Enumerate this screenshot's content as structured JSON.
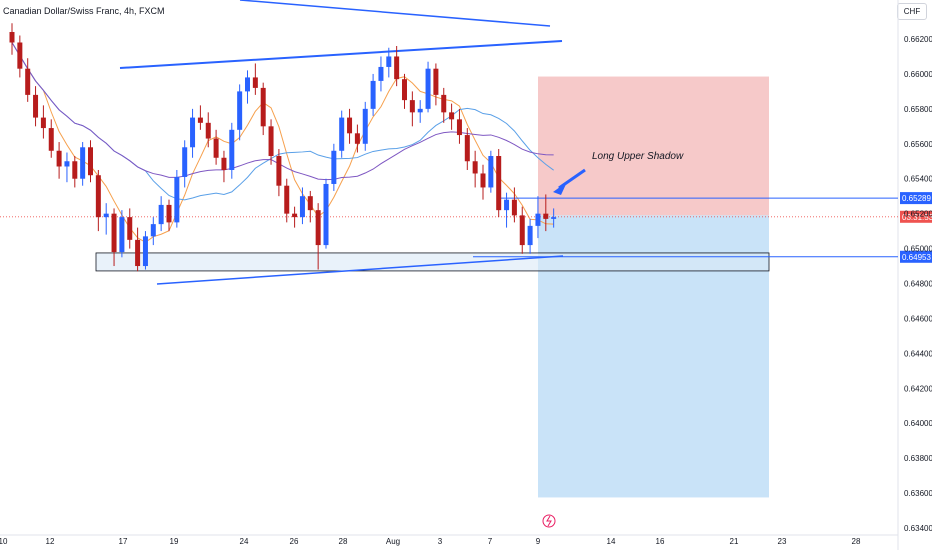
{
  "symbol_title": "Canadian Dollar/Swiss Franc, 4h, FXCM",
  "currency": "CHF",
  "chart_data": {
    "type": "candlestick",
    "yticks": [
      "0.66200",
      "0.66000",
      "0.65800",
      "0.65600",
      "0.65400",
      "0.65200",
      "0.65000",
      "0.64800",
      "0.64600",
      "0.64400",
      "0.64200",
      "0.64000",
      "0.63800",
      "0.63600",
      "0.63400"
    ],
    "xticks": [
      "10",
      "12",
      "17",
      "19",
      "24",
      "26",
      "28",
      "Aug",
      "3",
      "7",
      "9",
      "14",
      "16",
      "21",
      "23",
      "28"
    ],
    "ylim": [
      0.6333,
      0.6627
    ],
    "price_tags": [
      {
        "label": "0.65289",
        "value": 0.65289,
        "color": "#2962ff"
      },
      {
        "label": "03:31:53",
        "value": 0.65182,
        "color": "#ef5350"
      },
      {
        "label": "0.64953",
        "value": 0.64953,
        "color": "#2962ff"
      }
    ],
    "annotation": "Long Upper Shadow",
    "trade": {
      "entry": 0.6519,
      "stop": 0.65985,
      "target": 0.63575
    },
    "support_zone": [
      0.64872,
      0.64975
    ],
    "candles": [
      [
        0.6624,
        0.6629,
        0.6611,
        0.6618
      ],
      [
        0.6618,
        0.6622,
        0.6598,
        0.6603
      ],
      [
        0.6603,
        0.6609,
        0.6584,
        0.6588
      ],
      [
        0.6588,
        0.6593,
        0.657,
        0.6575
      ],
      [
        0.6575,
        0.6582,
        0.6563,
        0.6569
      ],
      [
        0.6569,
        0.6574,
        0.6552,
        0.6556
      ],
      [
        0.6556,
        0.6561,
        0.654,
        0.6547
      ],
      [
        0.6547,
        0.6555,
        0.6538,
        0.655
      ],
      [
        0.655,
        0.6553,
        0.6535,
        0.654
      ],
      [
        0.654,
        0.6561,
        0.6536,
        0.6558
      ],
      [
        0.6558,
        0.6562,
        0.6538,
        0.6542
      ],
      [
        0.6542,
        0.6545,
        0.651,
        0.6518
      ],
      [
        0.6518,
        0.6526,
        0.6508,
        0.652
      ],
      [
        0.652,
        0.6523,
        0.649,
        0.6498
      ],
      [
        0.6498,
        0.6522,
        0.6495,
        0.6518
      ],
      [
        0.6518,
        0.6523,
        0.65,
        0.6505
      ],
      [
        0.6505,
        0.6512,
        0.6487,
        0.649
      ],
      [
        0.649,
        0.651,
        0.6488,
        0.6507
      ],
      [
        0.6507,
        0.6518,
        0.6502,
        0.6514
      ],
      [
        0.6514,
        0.653,
        0.651,
        0.6525
      ],
      [
        0.6525,
        0.6528,
        0.651,
        0.6515
      ],
      [
        0.6515,
        0.6545,
        0.6512,
        0.6541
      ],
      [
        0.6541,
        0.6562,
        0.6535,
        0.6558
      ],
      [
        0.6558,
        0.658,
        0.6552,
        0.6575
      ],
      [
        0.6575,
        0.6582,
        0.6568,
        0.6572
      ],
      [
        0.6572,
        0.6578,
        0.6558,
        0.6563
      ],
      [
        0.6563,
        0.6568,
        0.6548,
        0.6552
      ],
      [
        0.6552,
        0.6556,
        0.6538,
        0.6545
      ],
      [
        0.6545,
        0.6572,
        0.654,
        0.6568
      ],
      [
        0.6568,
        0.6594,
        0.6562,
        0.659
      ],
      [
        0.659,
        0.6602,
        0.6583,
        0.6598
      ],
      [
        0.6598,
        0.6606,
        0.6588,
        0.6592
      ],
      [
        0.6592,
        0.6595,
        0.6565,
        0.657
      ],
      [
        0.657,
        0.6574,
        0.6548,
        0.6553
      ],
      [
        0.6553,
        0.6557,
        0.653,
        0.6536
      ],
      [
        0.6536,
        0.654,
        0.6515,
        0.652
      ],
      [
        0.652,
        0.6524,
        0.6512,
        0.6518
      ],
      [
        0.6518,
        0.6535,
        0.6514,
        0.653
      ],
      [
        0.653,
        0.6533,
        0.6515,
        0.6522
      ],
      [
        0.6522,
        0.6526,
        0.6488,
        0.6502
      ],
      [
        0.6502,
        0.654,
        0.65,
        0.6537
      ],
      [
        0.6537,
        0.656,
        0.6533,
        0.6556
      ],
      [
        0.6556,
        0.6579,
        0.6552,
        0.6575
      ],
      [
        0.6575,
        0.658,
        0.656,
        0.6566
      ],
      [
        0.6566,
        0.6571,
        0.6555,
        0.656
      ],
      [
        0.656,
        0.6584,
        0.6556,
        0.658
      ],
      [
        0.658,
        0.66,
        0.6576,
        0.6596
      ],
      [
        0.6596,
        0.661,
        0.659,
        0.6604
      ],
      [
        0.6604,
        0.6615,
        0.6598,
        0.661
      ],
      [
        0.661,
        0.6616,
        0.6593,
        0.6597
      ],
      [
        0.6597,
        0.66,
        0.658,
        0.6585
      ],
      [
        0.6585,
        0.659,
        0.657,
        0.6578
      ],
      [
        0.6578,
        0.6585,
        0.6572,
        0.658
      ],
      [
        0.658,
        0.6607,
        0.6578,
        0.6603
      ],
      [
        0.6603,
        0.6606,
        0.6582,
        0.6588
      ],
      [
        0.6588,
        0.6592,
        0.6572,
        0.6578
      ],
      [
        0.6578,
        0.6583,
        0.6568,
        0.6574
      ],
      [
        0.6574,
        0.658,
        0.656,
        0.6565
      ],
      [
        0.6565,
        0.6569,
        0.6545,
        0.655
      ],
      [
        0.655,
        0.6556,
        0.6535,
        0.6543
      ],
      [
        0.6543,
        0.6548,
        0.6528,
        0.6535
      ],
      [
        0.6535,
        0.6556,
        0.6532,
        0.6553
      ],
      [
        0.6553,
        0.6557,
        0.6518,
        0.6522
      ],
      [
        0.6522,
        0.6532,
        0.6512,
        0.6528
      ],
      [
        0.6528,
        0.6535,
        0.6515,
        0.6519
      ],
      [
        0.6519,
        0.6524,
        0.6497,
        0.6502
      ],
      [
        0.6502,
        0.6517,
        0.6497,
        0.6513
      ],
      [
        0.6513,
        0.653,
        0.6506,
        0.652
      ],
      [
        0.652,
        0.6531,
        0.651,
        0.6517
      ],
      [
        0.6517,
        0.6523,
        0.6512,
        0.6518
      ]
    ]
  }
}
